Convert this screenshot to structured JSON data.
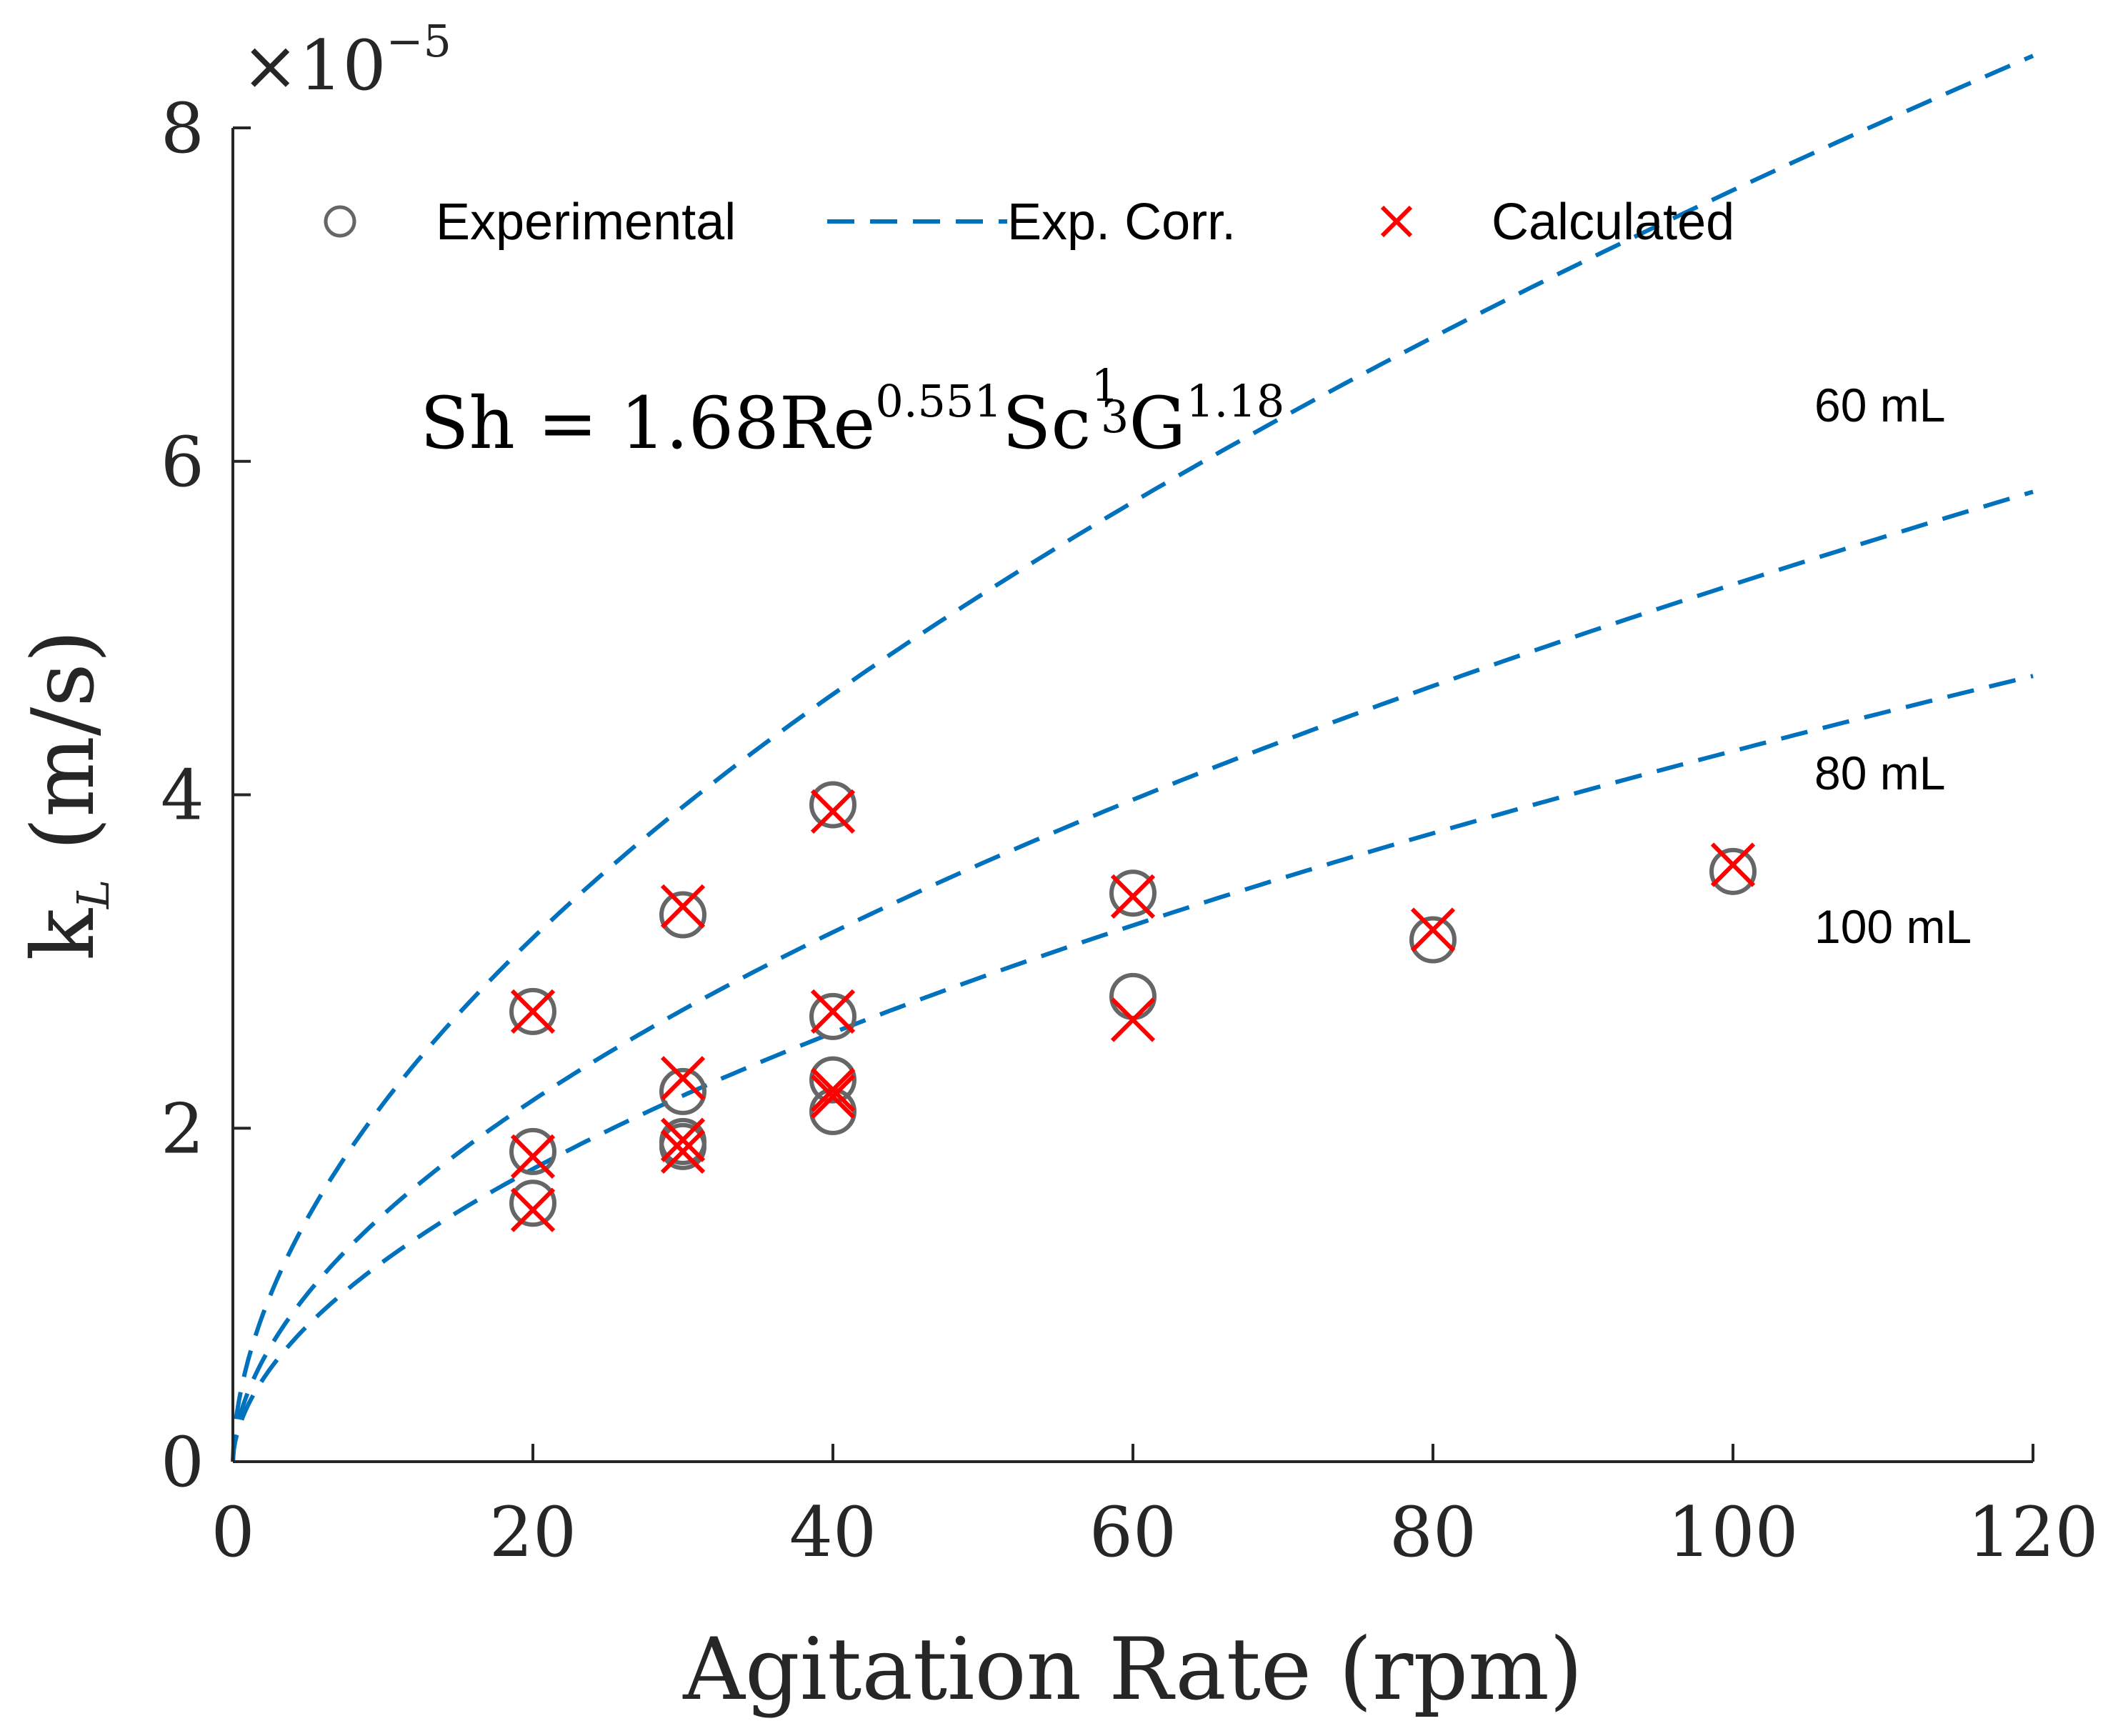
{
  "chart_data": {
    "type": "scatter",
    "title": "",
    "xlabel": "Agitation Rate (rpm)",
    "ylabel": "k",
    "ylabel_subscript": "L",
    "ylabel_units": "(m/s)",
    "xlim": [
      0,
      120
    ],
    "ylim": [
      0,
      8e-05
    ],
    "x_ticks": [
      0,
      20,
      40,
      60,
      80,
      100,
      120
    ],
    "x_tick_labels": [
      "0",
      "20",
      "40",
      "60",
      "80",
      "100",
      "120"
    ],
    "y_ticks": [
      0,
      2e-05,
      4e-05,
      6e-05,
      8e-05
    ],
    "y_tick_labels": [
      "0",
      "2",
      "4",
      "6",
      "8"
    ],
    "y_multiplier_base": "×10",
    "y_multiplier_exp": "−5",
    "grid": false,
    "legend": {
      "placement": "top",
      "entries": [
        {
          "label": "Experimental",
          "marker": "circle",
          "color": "#666666"
        },
        {
          "label": "Exp. Corr.",
          "marker": "dashed-line",
          "color": "#0072BD"
        },
        {
          "label": "Calculated",
          "marker": "cross",
          "color": "#FF0000"
        }
      ]
    },
    "annotation": {
      "base": "Sh = 1.68Re",
      "re_exp": "0.551",
      "sc": "Sc",
      "sc_exp_num": "1",
      "sc_exp_den": "3",
      "g": "G",
      "g_exp": "1.18"
    },
    "series": [
      {
        "name": "60 mL",
        "corr_coef": 6.03e-06,
        "corr_exp": 0.551,
        "experimental": [
          [
            20,
            2.7e-05
          ],
          [
            30,
            3.28e-05
          ],
          [
            40,
            3.94e-05
          ]
        ],
        "calculated": [
          [
            20,
            2.7e-05
          ],
          [
            30,
            3.33e-05
          ],
          [
            40,
            3.9e-05
          ]
        ]
      },
      {
        "name": "80 mL",
        "corr_coef": 4.16e-06,
        "corr_exp": 0.551,
        "experimental": [
          [
            20,
            1.86e-05
          ],
          [
            30,
            2.22e-05
          ],
          [
            40,
            2.67e-05
          ],
          [
            60,
            3.41e-05
          ]
        ],
        "calculated": [
          [
            20,
            1.83e-05
          ],
          [
            30,
            2.3e-05
          ],
          [
            40,
            2.7e-05
          ],
          [
            60,
            3.39e-05
          ]
        ]
      },
      {
        "name": "100 mL",
        "corr_coef": 3.37e-06,
        "corr_exp": 0.551,
        "experimental": [
          [
            20,
            1.55e-05
          ],
          [
            30,
            1.89e-05
          ],
          [
            30,
            1.92e-05
          ],
          [
            40,
            2.1e-05
          ],
          [
            40,
            2.29e-05
          ],
          [
            60,
            2.79e-05
          ],
          [
            80,
            3.13e-05
          ],
          [
            100,
            3.54e-05
          ]
        ],
        "calculated": [
          [
            20,
            1.51e-05
          ],
          [
            30,
            1.86e-05
          ],
          [
            30,
            1.93e-05
          ],
          [
            40,
            2.19e-05
          ],
          [
            40,
            2.23e-05
          ],
          [
            60,
            2.65e-05
          ],
          [
            80,
            3.19e-05
          ],
          [
            100,
            3.58e-05
          ]
        ]
      }
    ]
  },
  "colors": {
    "experimental": "#666666",
    "correlation": "#0072BD",
    "calculated": "#FF0000",
    "axis": "#262626"
  }
}
